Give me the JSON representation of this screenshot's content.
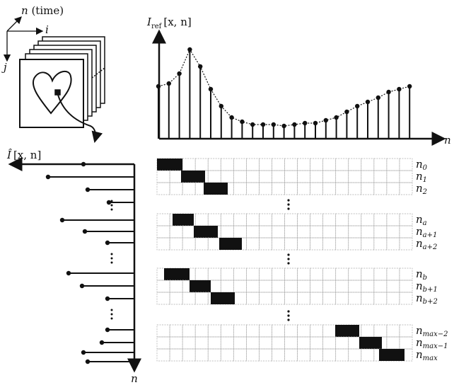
{
  "labels": {
    "time_axis": {
      "var": "n",
      "note": "(time)"
    },
    "i": "i",
    "j": "j",
    "iref": {
      "main": "I",
      "sub": "ref",
      "args": "[x, n]"
    },
    "iref_axis": "n",
    "ihat": {
      "main": "Î",
      "args": "[x, n]"
    },
    "ihat_axis": "n"
  },
  "groups": [
    {
      "rows": [
        {
          "main": "n",
          "sub": "0"
        },
        {
          "main": "n",
          "sub": "1"
        },
        {
          "main": "n",
          "sub": "2"
        }
      ]
    },
    {
      "rows": [
        {
          "main": "n",
          "sub": "a"
        },
        {
          "main": "n",
          "sub": "a+1"
        },
        {
          "main": "n",
          "sub": "a+2"
        }
      ]
    },
    {
      "rows": [
        {
          "main": "n",
          "sub": "b"
        },
        {
          "main": "n",
          "sub": "b+1"
        },
        {
          "main": "n",
          "sub": "b+2"
        }
      ]
    },
    {
      "rows": [
        {
          "main": "n",
          "sub": "max−2"
        },
        {
          "main": "n",
          "sub": "max−1"
        },
        {
          "main": "n",
          "sub": "max"
        }
      ]
    }
  ]
}
